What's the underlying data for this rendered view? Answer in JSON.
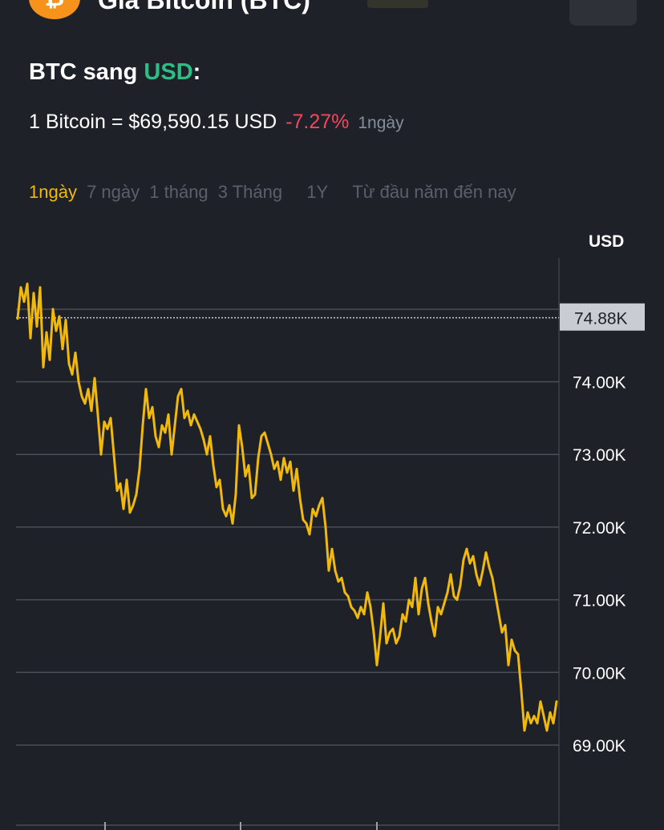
{
  "header": {
    "title": "Giá Bitcoin (BTC)",
    "logo_icon": "bitcoin-icon",
    "logo_glyph": "₿"
  },
  "pair": {
    "base": "BTC",
    "connector": " sang ",
    "quote": "USD",
    "suffix": ":"
  },
  "price": {
    "text": "1 Bitcoin = $69,590.15 USD",
    "change": "-7.27%",
    "period": "1ngày"
  },
  "ranges": [
    "1ngày",
    "7 ngày",
    "1 tháng",
    "3 Tháng",
    "1Y",
    "Từ đầu năm đến nay"
  ],
  "active_range": "1ngày",
  "colors": {
    "background": "#1e2128",
    "line": "#f0b90b",
    "grid": "#4a4e57",
    "positive": "#2ebd85",
    "negative": "#f6465d",
    "label_bg": "#c9cdd3"
  },
  "chart_data": {
    "type": "line",
    "title": "",
    "xlabel": "",
    "ylabel": "USD",
    "ylim": [
      68000,
      75500
    ],
    "yticks": [
      69000,
      70000,
      71000,
      72000,
      73000,
      74000
    ],
    "ytick_labels": [
      "69.00K",
      "70.00K",
      "71.00K",
      "72.00K",
      "73.00K",
      "74.00K"
    ],
    "reference_line": {
      "value": 74880,
      "label": "74.88K"
    },
    "grid": true,
    "series": [
      {
        "name": "",
        "values": [
          74870,
          75300,
          75100,
          75350,
          74600,
          75220,
          74760,
          75300,
          74200,
          74680,
          74300,
          75000,
          74700,
          74900,
          74450,
          74850,
          74250,
          74100,
          74400,
          74000,
          73800,
          73700,
          73900,
          73600,
          74050,
          73550,
          73000,
          73450,
          73350,
          73500,
          73000,
          72500,
          72600,
          72250,
          72650,
          72200,
          72300,
          72450,
          72800,
          73400,
          73900,
          73500,
          73650,
          73250,
          73100,
          73400,
          73300,
          73550,
          73000,
          73400,
          73800,
          73900,
          73500,
          73600,
          73400,
          73550,
          73450,
          73350,
          73200,
          73000,
          73250,
          72850,
          72550,
          72650,
          72250,
          72150,
          72300,
          72050,
          72450,
          73400,
          73100,
          72700,
          72850,
          72400,
          72450,
          72950,
          73250,
          73300,
          73150,
          73000,
          72800,
          72900,
          72650,
          72950,
          72750,
          72900,
          72500,
          72800,
          72400,
          72100,
          72050,
          71900,
          72250,
          72150,
          72300,
          72400,
          72000,
          71400,
          71700,
          71400,
          71250,
          71300,
          71100,
          71050,
          70900,
          70850,
          70750,
          70900,
          70800,
          71100,
          70900,
          70550,
          70100,
          70500,
          70950,
          70400,
          70550,
          70600,
          70400,
          70500,
          70800,
          70700,
          71000,
          70900,
          71300,
          70800,
          71150,
          71300,
          70950,
          70700,
          70500,
          70900,
          70800,
          70950,
          71100,
          71350,
          71050,
          71000,
          71200,
          71550,
          71700,
          71500,
          71600,
          71350,
          71200,
          71400,
          71650,
          71450,
          71300,
          71050,
          70800,
          70550,
          70650,
          70100,
          70450,
          70300,
          70250,
          69750,
          69200,
          69450,
          69300,
          69400,
          69300,
          69600,
          69400,
          69200,
          69450,
          69300,
          69600
        ]
      }
    ]
  }
}
